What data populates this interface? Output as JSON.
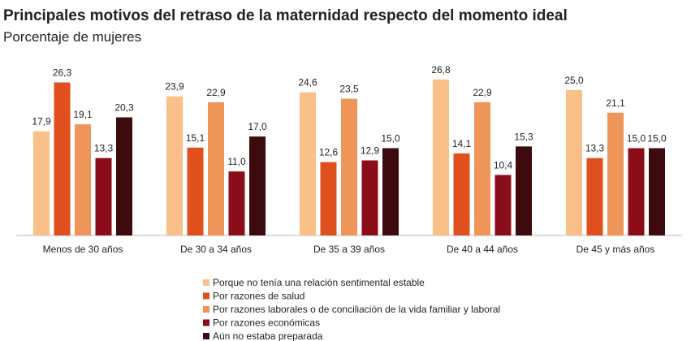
{
  "chart_data": {
    "type": "bar",
    "title": "Principales motivos del retraso de la maternidad respecto del momento ideal",
    "subtitle": "Porcentaje de mujeres",
    "categories": [
      "Menos de 30 años",
      "De 30 a 34 años",
      "De 35 a 39 años",
      "De 40 a 44 años",
      "De 45 y más años"
    ],
    "ylim": [
      0,
      30
    ],
    "series": [
      {
        "name": "Porque no tenía una relación sentimental estable",
        "color": "#f9c08a",
        "values": [
          17.9,
          23.9,
          24.6,
          26.8,
          25.0
        ],
        "value_labels": [
          "17,9",
          "23,9",
          "24,6",
          "26,8",
          "25,0"
        ]
      },
      {
        "name": "Por razones de salud",
        "color": "#e0501e",
        "values": [
          26.3,
          15.1,
          12.6,
          14.1,
          13.3
        ],
        "value_labels": [
          "26,3",
          "15,1",
          "12,6",
          "14,1",
          "13,3"
        ]
      },
      {
        "name": "Por razones laborales o de conciliación de la vida familiar y laboral",
        "color": "#f0955a",
        "values": [
          19.1,
          22.9,
          23.5,
          22.9,
          21.1
        ],
        "value_labels": [
          "19,1",
          "22,9",
          "23,5",
          "22,9",
          "21,1"
        ]
      },
      {
        "name": "Por razones económicas",
        "color": "#8b0d1a",
        "values": [
          13.3,
          11.0,
          12.9,
          10.4,
          15.0
        ],
        "value_labels": [
          "13,3",
          "11,0",
          "12,9",
          "10,4",
          "15,0"
        ]
      },
      {
        "name": "Aún no estaba preparada",
        "color": "#3d0a0e",
        "values": [
          20.3,
          17.0,
          15.0,
          15.3,
          15.0
        ],
        "value_labels": [
          "20,3",
          "17,0",
          "15,0",
          "15,3",
          "15,0"
        ]
      }
    ]
  }
}
